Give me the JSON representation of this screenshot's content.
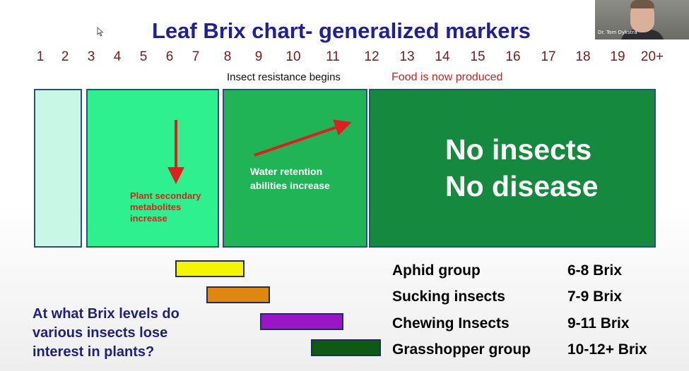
{
  "slide": {
    "title": "Leaf Brix chart- generalized markers",
    "presenter_label": "Dr. Tom Dykstra",
    "scale": [
      "1",
      "2",
      "3",
      "4",
      "5",
      "6",
      "7",
      "8",
      "9",
      "10",
      "11",
      "12",
      "13",
      "14",
      "15",
      "16",
      "17",
      "18",
      "19",
      "20+"
    ],
    "insect_resistance_label": "Insect resistance begins",
    "food_label": "Food is now produced",
    "zone2_text": [
      "Plant secondary",
      "metabolites",
      "increase"
    ],
    "zone3_text": [
      "Water retention",
      "abilities increase"
    ],
    "zone4_text": [
      "No insects",
      "No disease"
    ],
    "question": [
      "At what Brix levels do",
      "various insects lose",
      "interest in plants?"
    ],
    "groups": [
      {
        "name": "Aphid group",
        "range": "6-8 Brix",
        "color": "#f5f500"
      },
      {
        "name": "Sucking insects",
        "range": "7-9 Brix",
        "color": "#e0870f"
      },
      {
        "name": "Chewing Insects",
        "range": "9-11 Brix",
        "color": "#9a14c8"
      },
      {
        "name": "Grasshopper group",
        "range": "10-12+ Brix",
        "color": "#0e5a14"
      }
    ],
    "colors": {
      "title": "#1f1f99",
      "scale_numbers": "#7a1a1a",
      "zone1": "#c9f7e6",
      "zone2": "#2ef08e",
      "zone3": "#21b457",
      "zone4": "#158a3e",
      "arrow": "#e11e1e"
    }
  }
}
